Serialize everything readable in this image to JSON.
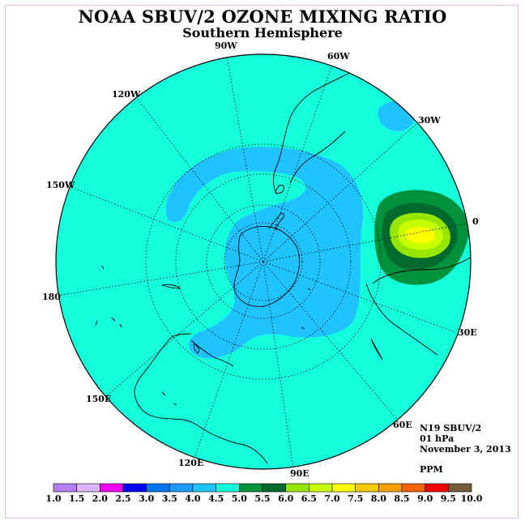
{
  "title": "NOAA SBUV/2 OZONE MIXING RATIO",
  "subtitle": "Southern Hemisphere",
  "longitude_labels": [
    {
      "name": "lon-label-90w",
      "text": "90W"
    },
    {
      "name": "lon-label-60w",
      "text": "60W"
    },
    {
      "name": "lon-label-30w",
      "text": "30W"
    },
    {
      "name": "lon-label-0",
      "text": "0"
    },
    {
      "name": "lon-label-30e",
      "text": "30E"
    },
    {
      "name": "lon-label-60e",
      "text": "60E"
    },
    {
      "name": "lon-label-90e",
      "text": "90E"
    },
    {
      "name": "lon-label-120e",
      "text": "120E"
    },
    {
      "name": "lon-label-150e",
      "text": "150E"
    },
    {
      "name": "lon-label-180",
      "text": "180"
    },
    {
      "name": "lon-label-150w",
      "text": "150W"
    },
    {
      "name": "lon-label-120w",
      "text": "120W"
    }
  ],
  "info": {
    "instrument": "N19 SBUV/2",
    "level": "01 hPa",
    "date": "November 3, 2013",
    "units": "PPM"
  },
  "colorbar": {
    "colors": [
      "#b27ff0",
      "#dcb4f8",
      "#f000f0",
      "#0000f0",
      "#0078f0",
      "#1e9bff",
      "#1ec3ff",
      "#14ffdc",
      "#00913c",
      "#00692d",
      "#96e600",
      "#c8ff00",
      "#ffff00",
      "#f5c800",
      "#f5a000",
      "#f56400",
      "#f00000",
      "#785a3c"
    ],
    "ticks": [
      "1.0",
      "1.5",
      "2.0",
      "2.5",
      "3.0",
      "3.5",
      "4.0",
      "4.5",
      "5.0",
      "5.5",
      "6.0",
      "6.5",
      "7.0",
      "7.5",
      "8.0",
      "8.5",
      "9.0",
      "9.5",
      "10.0"
    ]
  }
}
